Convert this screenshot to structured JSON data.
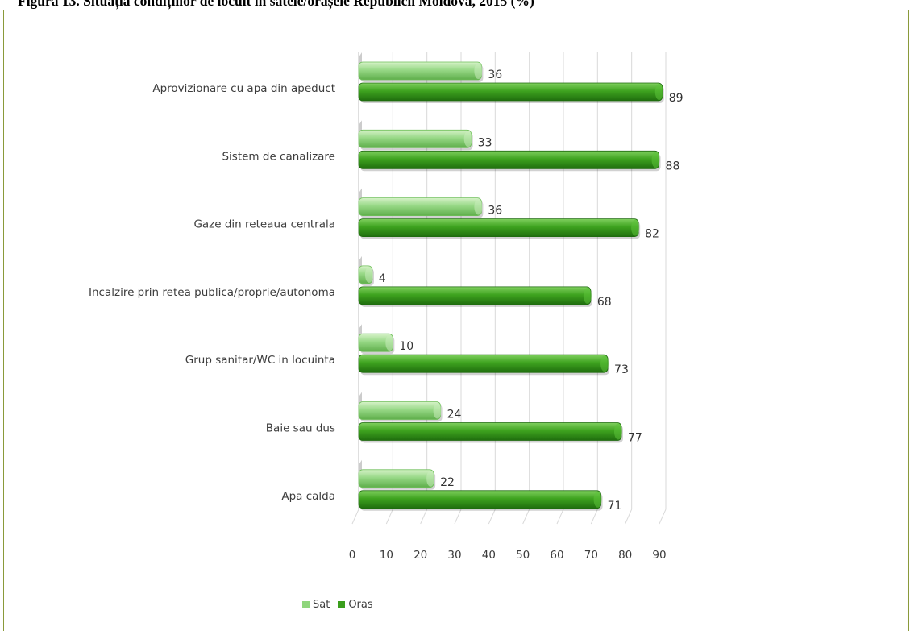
{
  "title": "Figura 13. Situația condițiilor de locuit în satele/orașele Republicii Moldova, 2015 (%)",
  "colors": {
    "sat": "#8fd67c",
    "oras": "#3a9e1c",
    "frame": "#8a9a3a"
  },
  "chart_data": {
    "type": "bar",
    "orientation": "horizontal",
    "categories": [
      "Aprovizionare cu apa din apeduct",
      "Sistem de canalizare",
      "Gaze din reteaua centrala",
      "Incalzire prin retea publica/proprie/autonoma",
      "Grup sanitar/WC in locuinta",
      "Baie sau dus",
      "Apa calda"
    ],
    "series": [
      {
        "name": "Sat",
        "values": [
          36,
          33,
          36,
          4,
          10,
          24,
          22
        ]
      },
      {
        "name": "Oras",
        "values": [
          89,
          88,
          82,
          68,
          73,
          77,
          71
        ]
      }
    ],
    "xticks": [
      0,
      10,
      20,
      30,
      40,
      50,
      60,
      70,
      80,
      90
    ],
    "xlim": [
      0,
      90
    ],
    "grid": true,
    "legend_position": "bottom-left"
  }
}
